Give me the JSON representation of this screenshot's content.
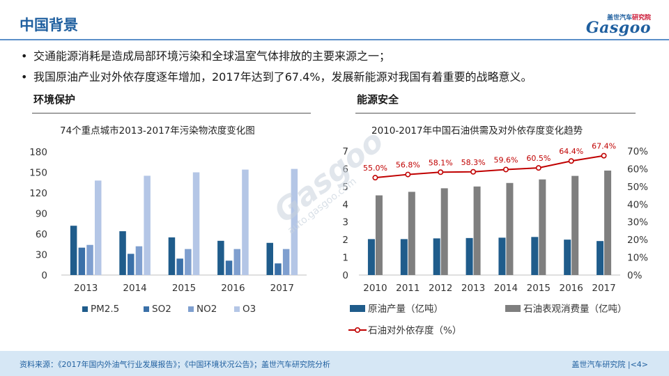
{
  "header": {
    "title": "中国背景",
    "logo_top_a": "盖世汽车",
    "logo_top_b": "研究院",
    "logo_main": "Gasgoo"
  },
  "bullets": [
    "交通能源消耗是造成局部环境污染和全球温室气体排放的主要来源之一；",
    "我国原油产业对外依存度逐年增加，2017年达到了67.4%，发展新能源对我国有着重要的战略意义。"
  ],
  "left_section": {
    "title": "环境保护"
  },
  "right_section": {
    "title": "能源安全"
  },
  "watermark": {
    "brand": "Gasgoo",
    "url": "auto.gasgoo.com"
  },
  "colors": {
    "pm25": "#1f5c8b",
    "so2": "#3a70a8",
    "no2": "#7f9fcf",
    "o3": "#b4c6e6",
    "production": "#1f5c8b",
    "consumption": "#7f7f7f",
    "dependence": "#c00000"
  },
  "chart_data": [
    {
      "type": "bar",
      "title": "74个重点城市2013-2017年污染物浓度变化图",
      "categories": [
        "2013",
        "2014",
        "2015",
        "2016",
        "2017"
      ],
      "series": [
        {
          "name": "PM2.5",
          "values": [
            72,
            64,
            55,
            50,
            47
          ]
        },
        {
          "name": "SO2",
          "values": [
            40,
            31,
            24,
            21,
            17
          ]
        },
        {
          "name": "NO2",
          "values": [
            44,
            42,
            38,
            38,
            38
          ]
        },
        {
          "name": "O3",
          "values": [
            138,
            145,
            150,
            154,
            155
          ]
        }
      ],
      "ylim": [
        0,
        180
      ],
      "yticks": [
        "0",
        "30",
        "60",
        "90",
        "120",
        "150",
        "180"
      ],
      "legend": "bottom",
      "grid": false
    },
    {
      "type": "bar",
      "title": "2010-2017年中国石油供需及对外依存度变化趋势",
      "categories": [
        "2010",
        "2011",
        "2012",
        "2013",
        "2014",
        "2015",
        "2016",
        "2017"
      ],
      "series": [
        {
          "name": "原油产量（亿吨）",
          "type": "bar",
          "axis": "left",
          "values": [
            2.03,
            2.03,
            2.07,
            2.09,
            2.11,
            2.15,
            2.0,
            1.92
          ]
        },
        {
          "name": "石油表观消费量（亿吨）",
          "type": "bar",
          "axis": "left",
          "values": [
            4.5,
            4.7,
            4.9,
            5.0,
            5.2,
            5.4,
            5.6,
            5.9
          ]
        },
        {
          "name": "石油对外依存度（%）",
          "type": "line",
          "axis": "right",
          "values": [
            55.0,
            56.8,
            58.1,
            58.3,
            59.6,
            60.5,
            64.4,
            67.4
          ],
          "labels": [
            "55.0%",
            "56.8%",
            "58.1%",
            "58.3%",
            "59.6%",
            "60.5%",
            "64.4%",
            "67.4%"
          ]
        }
      ],
      "ylim": [
        0,
        7
      ],
      "yticks": [
        "0",
        "1",
        "2",
        "3",
        "4",
        "5",
        "6",
        "7"
      ],
      "y2lim": [
        0,
        70
      ],
      "y2ticks": [
        "0%",
        "10%",
        "20%",
        "30%",
        "40%",
        "50%",
        "60%",
        "70%"
      ],
      "legend": "bottom",
      "grid": false
    }
  ],
  "footer": {
    "source": "资料来源：《2017年国内外油气行业发展报告》；《中国环境状况公告》；盖世汽车研究院分析",
    "brand": "盖世汽车研究院",
    "page": "|<4>"
  }
}
